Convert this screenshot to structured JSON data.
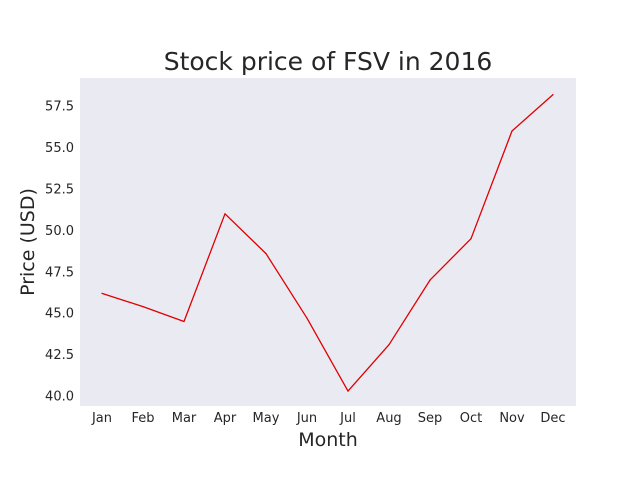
{
  "chart_data": {
    "type": "line",
    "title": "Stock price of FSV in 2016",
    "xlabel": "Month",
    "ylabel": "Price (USD)",
    "categories": [
      "Jan",
      "Feb",
      "Mar",
      "Apr",
      "May",
      "Jun",
      "Jul",
      "Aug",
      "Sep",
      "Oct",
      "Nov",
      "Dec"
    ],
    "series": [
      {
        "name": "FSV",
        "color": "#e00000",
        "values": [
          46.2,
          45.4,
          44.5,
          51.0,
          48.6,
          44.7,
          40.3,
          43.1,
          47.0,
          49.5,
          56.0,
          58.2
        ]
      }
    ],
    "ylim": [
      39.4,
      59.2
    ],
    "yticks": [
      40.0,
      42.5,
      45.0,
      47.5,
      50.0,
      52.5,
      55.0,
      57.5
    ],
    "ytick_labels": [
      "40.0",
      "42.5",
      "45.0",
      "47.5",
      "50.0",
      "52.5",
      "55.0",
      "57.5"
    ],
    "grid": false,
    "plot_background": "#eaeaf2"
  }
}
